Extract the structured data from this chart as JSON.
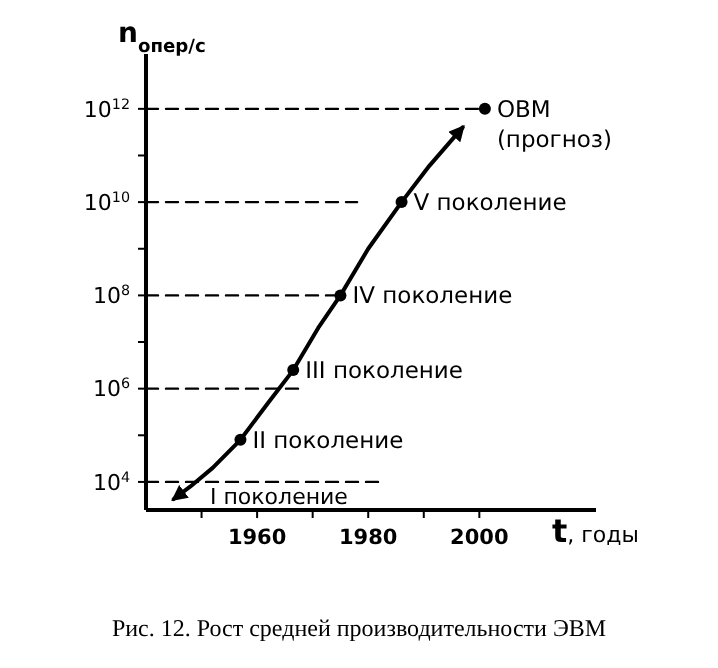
{
  "chart_data": {
    "type": "line",
    "title": "Рис. 12. Рост средней производительности ЭВМ",
    "xlabel": "t, годы",
    "ylabel": "n$_{опер/с}$",
    "log": "y",
    "grid": false,
    "xlim": [
      1940,
      2021
    ],
    "xticks": [
      {
        "value": 1950,
        "label": null
      },
      1960,
      {
        "value": 1970,
        "label": null
      },
      1980,
      {
        "value": 1990,
        "label": null
      },
      2000
    ],
    "ylim": [
      2500,
      15000000000000
    ],
    "yticks": [
      {
        "value": 10000,
        "label": "10$^{4}$"
      },
      {
        "value": 100000,
        "label": null
      },
      {
        "value": 1000000,
        "label": "10$^{6}$"
      },
      {
        "value": 10000000,
        "label": null
      },
      {
        "value": 100000000,
        "label": "10$^{8}$"
      },
      {
        "value": 1000000000,
        "label": null
      },
      {
        "value": 10000000000,
        "label": "10$^{10}$"
      },
      {
        "value": 100000000000,
        "label": null
      },
      {
        "value": 1000000000000,
        "label": "10$^{12}$"
      }
    ],
    "series": [
      {
        "color": "#000000",
        "marker": "none",
        "line_style": "solid",
        "x": [
          1945,
          1948,
          1952,
          1957,
          1962,
          1966.5,
          1971,
          1975,
          1980,
          1986,
          1991,
          1997
        ],
        "values": [
          4300,
          8000,
          20000,
          80000,
          500000,
          2500000,
          20000000,
          100000000,
          1000000000,
          10000000000,
          60000000000,
          400000000000
        ]
      },
      {
        "type": "scatter",
        "color": "#000000",
        "marker": "circle",
        "x": [
          1957,
          1966.5,
          1975,
          1986,
          2001
        ],
        "values": [
          80000,
          2500000,
          100000000,
          10000000000,
          1000000000000
        ]
      },
      {
        "type": "line",
        "color": "#000000",
        "marker": "none",
        "line_style": "dashed",
        "x": [
          1940,
          1983
        ],
        "values": [
          10000,
          10000
        ]
      },
      {
        "type": "line",
        "color": "#000000",
        "marker": "none",
        "line_style": "dashed",
        "x": [
          1940,
          1968
        ],
        "values": [
          1000000,
          1000000
        ]
      },
      {
        "type": "line",
        "color": "#000000",
        "marker": "none",
        "line_style": "dashed",
        "x": [
          1940,
          1975
        ],
        "values": [
          100000000,
          100000000
        ]
      },
      {
        "type": "line",
        "color": "#000000",
        "marker": "none",
        "line_style": "dashed",
        "x": [
          1940,
          1978
        ],
        "values": [
          10000000000,
          10000000000
        ]
      },
      {
        "type": "line",
        "color": "#000000",
        "marker": "none",
        "line_style": "dashed",
        "x": [
          1940,
          2000
        ],
        "values": [
          1000000000000,
          1000000000000
        ]
      }
    ],
    "annotations": [
      "I поколение",
      {
        "text": "II поколение",
        "x": 1957,
        "y": 80000
      },
      {
        "text": "III поколение",
        "x": 1966.5,
        "y": 2500000
      },
      {
        "text": "IV поколение",
        "x": 1975,
        "y": 100000000
      },
      {
        "text": "V поколение",
        "x": 1986,
        "y": 10000000000
      },
      {
        "text": "ОВМ\n(прогноз)",
        "x": 2001,
        "y": 1000000000000
      }
    ]
  }
}
